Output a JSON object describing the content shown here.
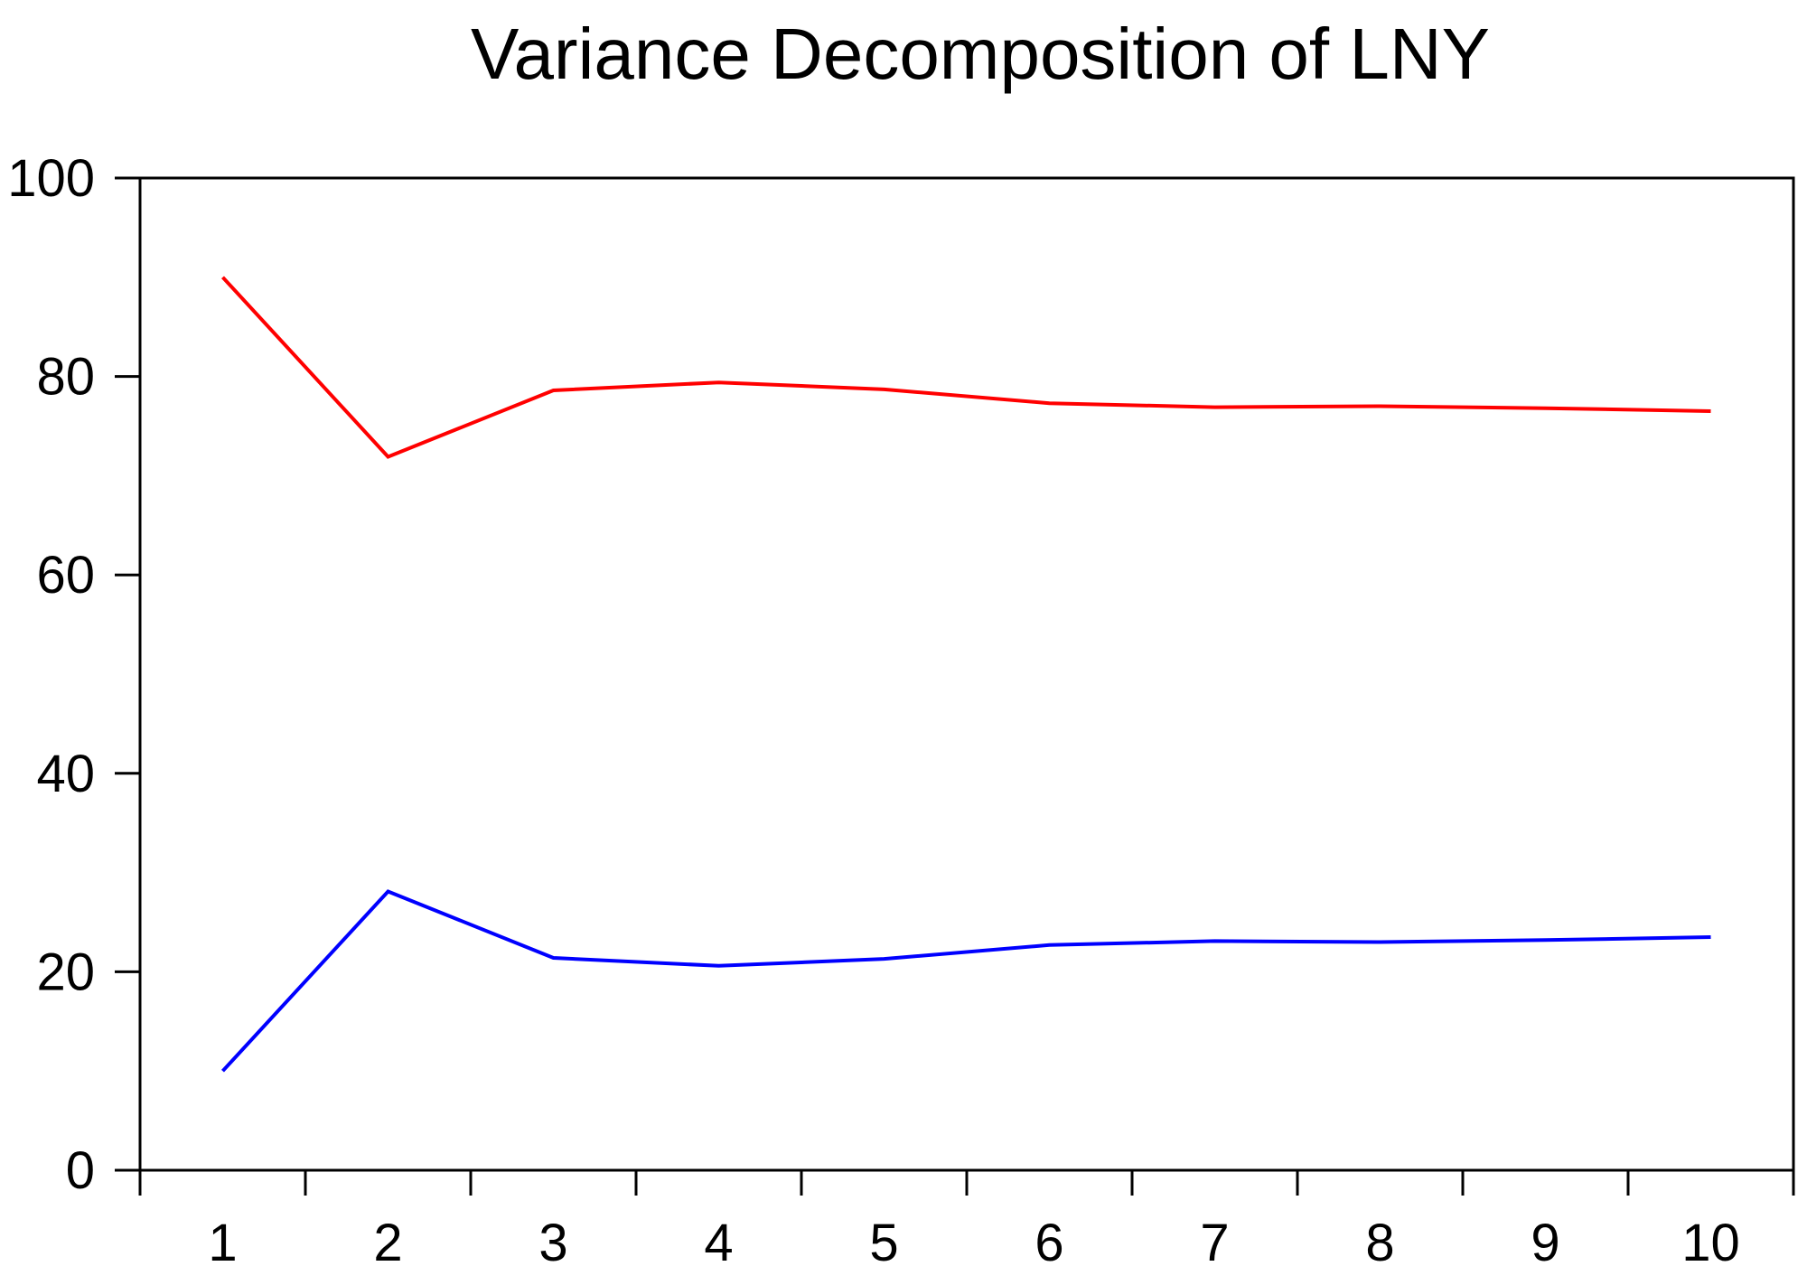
{
  "chart_data": {
    "type": "line",
    "title": "Variance Decomposition of LNY",
    "x": [
      1,
      2,
      3,
      4,
      5,
      6,
      7,
      8,
      9,
      10
    ],
    "xticks": [
      "1",
      "2",
      "3",
      "4",
      "5",
      "6",
      "7",
      "8",
      "9",
      "10"
    ],
    "yticks": [
      "0",
      "20",
      "40",
      "60",
      "80",
      "100"
    ],
    "ylim": [
      0,
      100
    ],
    "xlim": [
      0.5,
      10.5
    ],
    "grid": false,
    "legend": "none",
    "series": [
      {
        "color": "#ff0000",
        "values": [
          90.0,
          71.9,
          78.6,
          79.4,
          78.7,
          77.3,
          76.9,
          77.0,
          76.8,
          76.5
        ]
      },
      {
        "color": "#0000ff",
        "values": [
          10.0,
          28.1,
          21.4,
          20.6,
          21.3,
          22.7,
          23.1,
          23.0,
          23.2,
          23.5
        ]
      }
    ]
  }
}
